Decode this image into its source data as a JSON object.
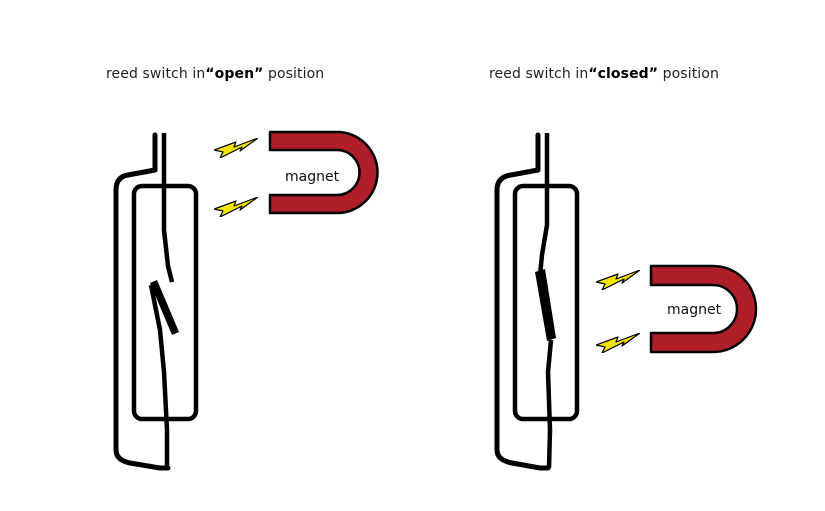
{
  "panels": [
    {
      "caption_prefix": "reed switch in",
      "caption_state": "“open”",
      "caption_suffix": " position",
      "magnet_label": "magnet"
    },
    {
      "caption_prefix": "reed switch in",
      "caption_state": "“closed”",
      "caption_suffix": " position",
      "magnet_label": "magnet"
    }
  ],
  "colors": {
    "magnet": "#b01e2a",
    "field_spark": "#f5e400",
    "outline": "#000000"
  },
  "icons": {
    "field": "lightning-bolt-icon",
    "magnet": "horseshoe-magnet-icon"
  }
}
